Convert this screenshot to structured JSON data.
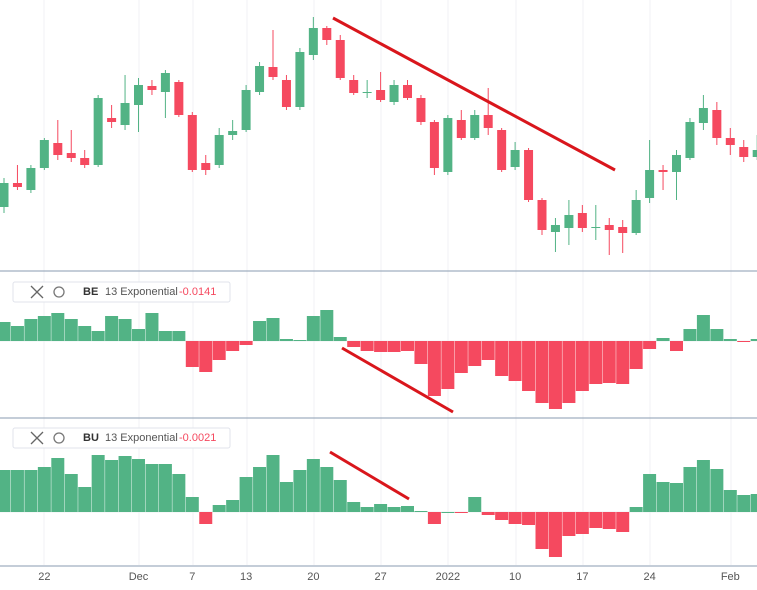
{
  "chart_data": [
    {
      "type": "candlestick",
      "categories": [
        null,
        null,
        null,
        "22",
        null,
        null,
        null,
        null,
        null,
        null,
        "Dec",
        null,
        null,
        null,
        "7",
        null,
        null,
        null,
        "13",
        null,
        null,
        null,
        null,
        "20",
        null,
        null,
        null,
        null,
        "27",
        null,
        null,
        null,
        null,
        "2022",
        null,
        null,
        null,
        null,
        "10",
        null,
        null,
        null,
        null,
        "17",
        null,
        null,
        null,
        null,
        "24",
        null,
        null,
        null,
        null,
        null,
        "Feb",
        null,
        null
      ],
      "open": [
        73,
        97,
        90,
        112,
        137,
        127,
        122,
        115,
        162,
        155,
        175,
        194,
        188,
        198,
        165,
        117,
        115,
        145,
        150,
        188,
        213,
        200,
        173,
        225,
        252,
        240,
        200,
        187,
        190,
        178,
        195,
        182,
        158,
        108,
        160,
        142,
        165,
        150,
        113,
        130,
        80,
        48,
        52,
        67,
        52,
        55,
        53,
        47,
        82,
        110,
        108,
        122,
        157,
        170,
        142,
        133,
        123
      ],
      "high": [
        102,
        115,
        115,
        142,
        160,
        150,
        130,
        185,
        175,
        205,
        202,
        200,
        210,
        200,
        168,
        125,
        152,
        160,
        195,
        218,
        250,
        205,
        232,
        263,
        254,
        245,
        205,
        200,
        208,
        200,
        200,
        185,
        160,
        165,
        170,
        170,
        192,
        152,
        138,
        132,
        82,
        62,
        80,
        75,
        75,
        62,
        60,
        90,
        140,
        115,
        130,
        162,
        185,
        178,
        152,
        140,
        145
      ],
      "low": [
        67,
        90,
        87,
        110,
        120,
        118,
        112,
        113,
        152,
        150,
        148,
        185,
        162,
        163,
        108,
        105,
        112,
        140,
        148,
        185,
        200,
        170,
        170,
        220,
        235,
        200,
        185,
        182,
        178,
        175,
        180,
        155,
        105,
        105,
        140,
        140,
        145,
        108,
        110,
        78,
        45,
        28,
        35,
        48,
        40,
        25,
        27,
        45,
        77,
        90,
        80,
        120,
        150,
        135,
        125,
        118,
        120
      ],
      "close": [
        97,
        93,
        112,
        140,
        125,
        122,
        115,
        182,
        158,
        177,
        195,
        190,
        207,
        165,
        110,
        110,
        145,
        149,
        190,
        214,
        203,
        173,
        228,
        252,
        240,
        202,
        187,
        188,
        180,
        195,
        182,
        158,
        112,
        162,
        142,
        165,
        152,
        110,
        130,
        80,
        50,
        55,
        65,
        52,
        53,
        50,
        47,
        80,
        110,
        108,
        125,
        158,
        172,
        142,
        135,
        123,
        130
      ],
      "up_color": "#52b385",
      "down_color": "#f5495f",
      "ylim": [
        10,
        280
      ]
    },
    {
      "type": "histogram",
      "name": "BE",
      "indicator": "13 Exponential",
      "last_value": -0.0141,
      "values": [
        19,
        15,
        22,
        25,
        28,
        22,
        15,
        10,
        25,
        22,
        12,
        28,
        10,
        10,
        -26,
        -31,
        -19,
        -10,
        -4,
        20,
        23,
        2,
        1,
        25,
        31,
        4,
        -6,
        -10,
        -11,
        -11,
        -10,
        -23,
        -55,
        -48,
        -32,
        -25,
        -19,
        -35,
        -40,
        -50,
        -62,
        -68,
        -62,
        -50,
        -43,
        -42,
        -43,
        -28,
        -8,
        3,
        -10,
        12,
        26,
        12,
        2,
        -1,
        2
      ],
      "up_color": "#52b385",
      "down_color": "#f5495f",
      "ylim": [
        -77,
        66
      ]
    },
    {
      "type": "histogram",
      "name": "BU",
      "indicator": "13 Exponential",
      "last_value": -0.0021,
      "values": [
        42,
        42,
        42,
        45,
        54,
        38,
        25,
        57,
        52,
        56,
        53,
        48,
        48,
        38,
        15,
        -12,
        7,
        12,
        35,
        45,
        57,
        30,
        42,
        53,
        45,
        32,
        10,
        5,
        8,
        5,
        6,
        1,
        -12,
        0,
        -1,
        15,
        -3,
        -8,
        -12,
        -13,
        -37,
        -45,
        -24,
        -22,
        -16,
        -17,
        -20,
        5,
        38,
        30,
        29,
        45,
        52,
        43,
        22,
        17,
        18
      ],
      "up_color": "#52b385",
      "down_color": "#f5495f",
      "ylim": [
        -53,
        92
      ]
    }
  ]
}
